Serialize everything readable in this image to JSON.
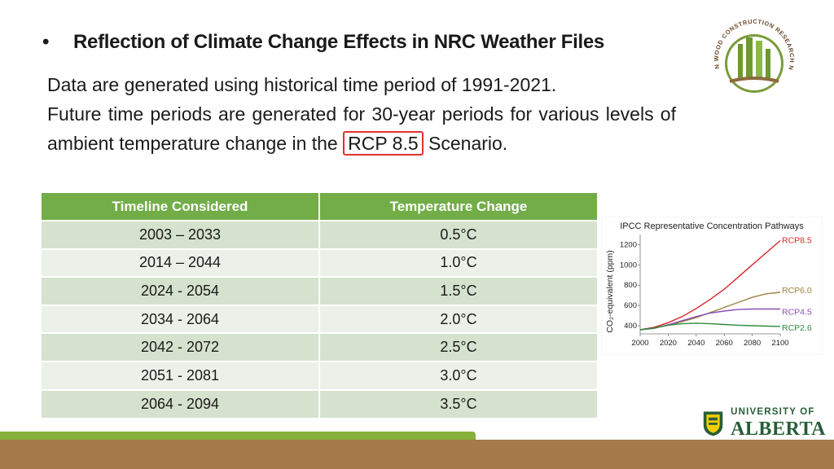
{
  "slide": {
    "bullet": "•",
    "title": "Reflection of Climate Change Effects in NRC Weather Files",
    "body_line1": "Data are generated using historical time period of 1991-2021.",
    "body_line2_pre": "Future time periods are generated for 30-year periods for various levels of ambient temperature change in the",
    "body_highlight": "RCP 8.5",
    "body_line2_post": "Scenario."
  },
  "table": {
    "headers": [
      "Timeline Considered",
      "Temperature Change"
    ],
    "rows": [
      [
        "2003 – 2033",
        "0.5°C"
      ],
      [
        "2014 – 2044",
        "1.0°C"
      ],
      [
        "2024 - 2054",
        "1.5°C"
      ],
      [
        "2034 - 2064",
        "2.0°C"
      ],
      [
        "2042 - 2072",
        "2.5°C"
      ],
      [
        "2051 - 2081",
        "3.0°C"
      ],
      [
        "2064 - 2094",
        "3.5°C"
      ]
    ]
  },
  "chart_data": {
    "type": "line",
    "title": "IPCC Representative Concentration Pathways",
    "xlabel": "",
    "ylabel": "CO₂-equivalent (ppm)",
    "xlim": [
      2000,
      2100
    ],
    "ylim": [
      320,
      1300
    ],
    "xticks": [
      "2000",
      "2020",
      "2040",
      "2060",
      "2080",
      "2100"
    ],
    "yticks": [
      "400",
      "600",
      "800",
      "1000",
      "1200"
    ],
    "x": [
      2000,
      2010,
      2020,
      2030,
      2040,
      2050,
      2060,
      2070,
      2080,
      2090,
      2100
    ],
    "series": [
      {
        "name": "RCP8.5",
        "color": "#d62728",
        "values": [
          360,
          385,
          430,
          490,
          570,
          660,
          760,
          880,
          1000,
          1120,
          1240
        ]
      },
      {
        "name": "RCP6.0",
        "color": "#9b8443",
        "values": [
          360,
          375,
          405,
          440,
          480,
          530,
          580,
          630,
          680,
          715,
          730
        ]
      },
      {
        "name": "RCP4.5",
        "color": "#8a4fb5",
        "values": [
          360,
          375,
          410,
          450,
          490,
          525,
          545,
          560,
          565,
          565,
          565
        ]
      },
      {
        "name": "RCP2.6",
        "color": "#2e8b3e",
        "values": [
          360,
          378,
          405,
          420,
          425,
          420,
          412,
          405,
          400,
          396,
          393
        ]
      }
    ]
  },
  "logos": {
    "cwc_text": "CANADIAN WOOD CONSTRUCTION RESEARCH NETWORK",
    "ua_top": "UNIVERSITY OF",
    "ua_bottom": "ALBERTA"
  },
  "colors": {
    "table_header": "#72ad47",
    "row_odd": "#d5e3ce",
    "row_even": "#ebf1e9",
    "highlight_box": "#e03030",
    "footer_green": "#86b13a",
    "footer_brown": "#a77a4b",
    "ua_green": "#275d38"
  }
}
